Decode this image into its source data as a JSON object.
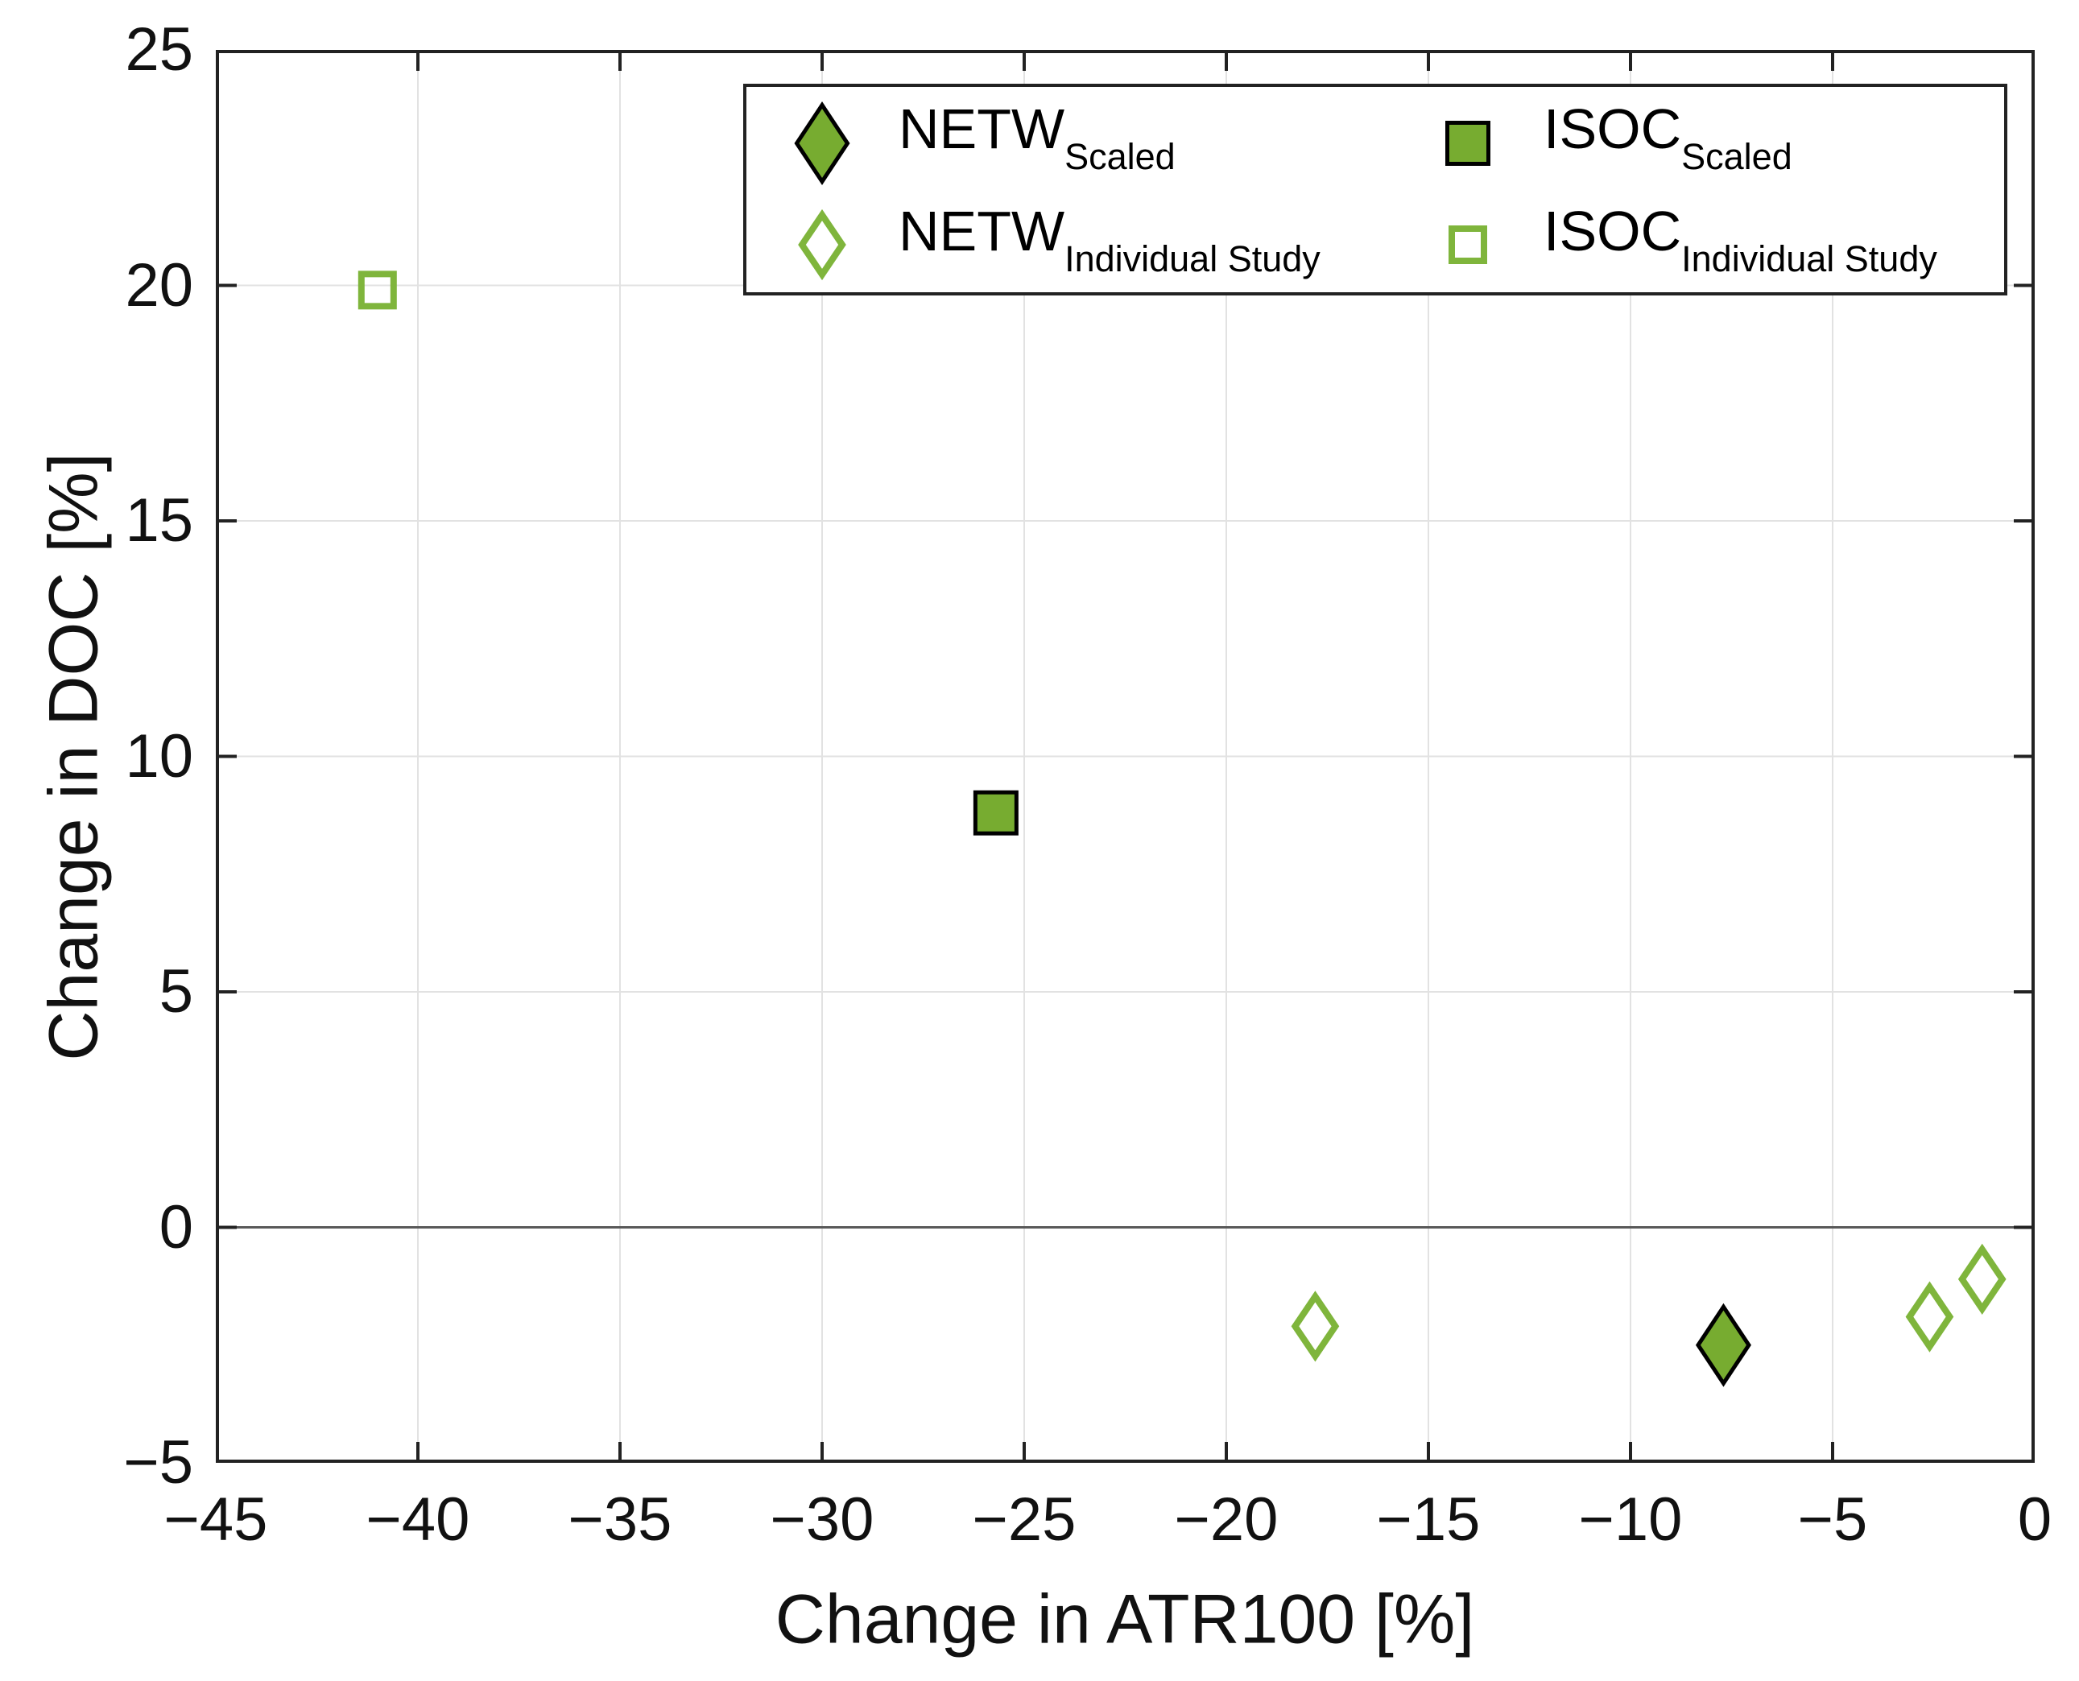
{
  "figure": {
    "background": "#ffffff",
    "axis_line_color": "#222222",
    "grid_color": "#e2e2e2",
    "zero_line_color": "#595959",
    "tick_text_color": "#111111",
    "marker_green_filled": "#77AC30",
    "marker_green_open": "#7FB53C",
    "marker_edge_black": "#000000"
  },
  "chart_data": {
    "type": "scatter",
    "title": "",
    "xlabel": "Change in ATR100 [%]",
    "ylabel": "Change in DOC [%]",
    "xlim": [
      -45,
      0
    ],
    "ylim": [
      -5,
      25
    ],
    "grid": true,
    "zero_line_y": 0,
    "legend_position": "top-right-inside",
    "x_ticks": {
      "values": [
        -45,
        -40,
        -35,
        -30,
        -25,
        -20,
        -15,
        -10,
        -5,
        0
      ],
      "labels": [
        "−45",
        "−40",
        "−35",
        "−30",
        "−25",
        "−20",
        "−15",
        "−10",
        "−5",
        "0"
      ]
    },
    "y_ticks": {
      "values": [
        25,
        20,
        15,
        10,
        5,
        0,
        -5
      ],
      "labels": [
        "25",
        "20",
        "15",
        "10",
        "5",
        "0",
        "−5"
      ]
    },
    "series": [
      {
        "name": "NETW_Scaled",
        "label_main": "NETW",
        "label_sub": "Scaled",
        "marker": "diamond",
        "fill": "#77AC30",
        "stroke": "#000000",
        "points": [
          {
            "x": -7.7,
            "y": -2.5
          }
        ]
      },
      {
        "name": "NETW_Individual Study",
        "label_main": "NETW",
        "label_sub": "Individual Study",
        "marker": "diamond-open",
        "fill": "none",
        "stroke": "#7FB53C",
        "points": [
          {
            "x": -17.8,
            "y": -2.1
          },
          {
            "x": -2.6,
            "y": -1.9
          },
          {
            "x": -1.3,
            "y": -1.1
          }
        ]
      },
      {
        "name": "ISOC_Scaled",
        "label_main": "ISOC",
        "label_sub": "Scaled",
        "marker": "square",
        "fill": "#77AC30",
        "stroke": "#000000",
        "points": [
          {
            "x": -25.7,
            "y": 8.8
          }
        ]
      },
      {
        "name": "ISOC_Individual Study",
        "label_main": "ISOC",
        "label_sub": "Individual Study",
        "marker": "square-open",
        "fill": "none",
        "stroke": "#7FB53C",
        "points": [
          {
            "x": -41.0,
            "y": 19.9
          }
        ]
      }
    ]
  }
}
